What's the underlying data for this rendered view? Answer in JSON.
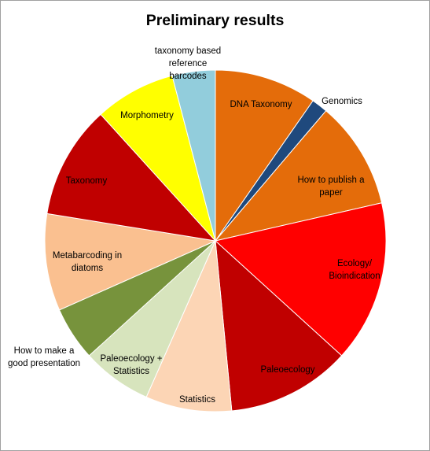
{
  "chart_data": {
    "type": "pie",
    "title": "Preliminary results",
    "slices": [
      {
        "label": "DNA Taxonomy",
        "value": 9.5,
        "color": "#E46C0A"
      },
      {
        "label": "Genomics",
        "value": 1.5,
        "color": "#1F497D"
      },
      {
        "label": "How to publish a paper",
        "value": 10.0,
        "color": "#E46C0A"
      },
      {
        "label": "Ecology/ Bioindication",
        "value": 15.0,
        "color": "#FF0000"
      },
      {
        "label": "Paleoecology",
        "value": 11.5,
        "color": "#C00000"
      },
      {
        "label": "Statistics",
        "value": 8.0,
        "color": "#FCD5B5"
      },
      {
        "label": "Paleoecology + Statistics",
        "value": 6.5,
        "color": "#D7E4BD"
      },
      {
        "label": "How to make a good presentation",
        "value": 5.0,
        "color": "#77933C"
      },
      {
        "label": "Metabarcoding in diatoms",
        "value": 9.0,
        "color": "#FAC090"
      },
      {
        "label": "Taxonomy",
        "value": 10.5,
        "color": "#C00000"
      },
      {
        "label": "Morphometry",
        "value": 7.5,
        "color": "#FFFF00"
      },
      {
        "label": "taxonomy based reference barcodes",
        "value": 4.0,
        "color": "#92CDDC"
      }
    ],
    "legend": "none"
  }
}
